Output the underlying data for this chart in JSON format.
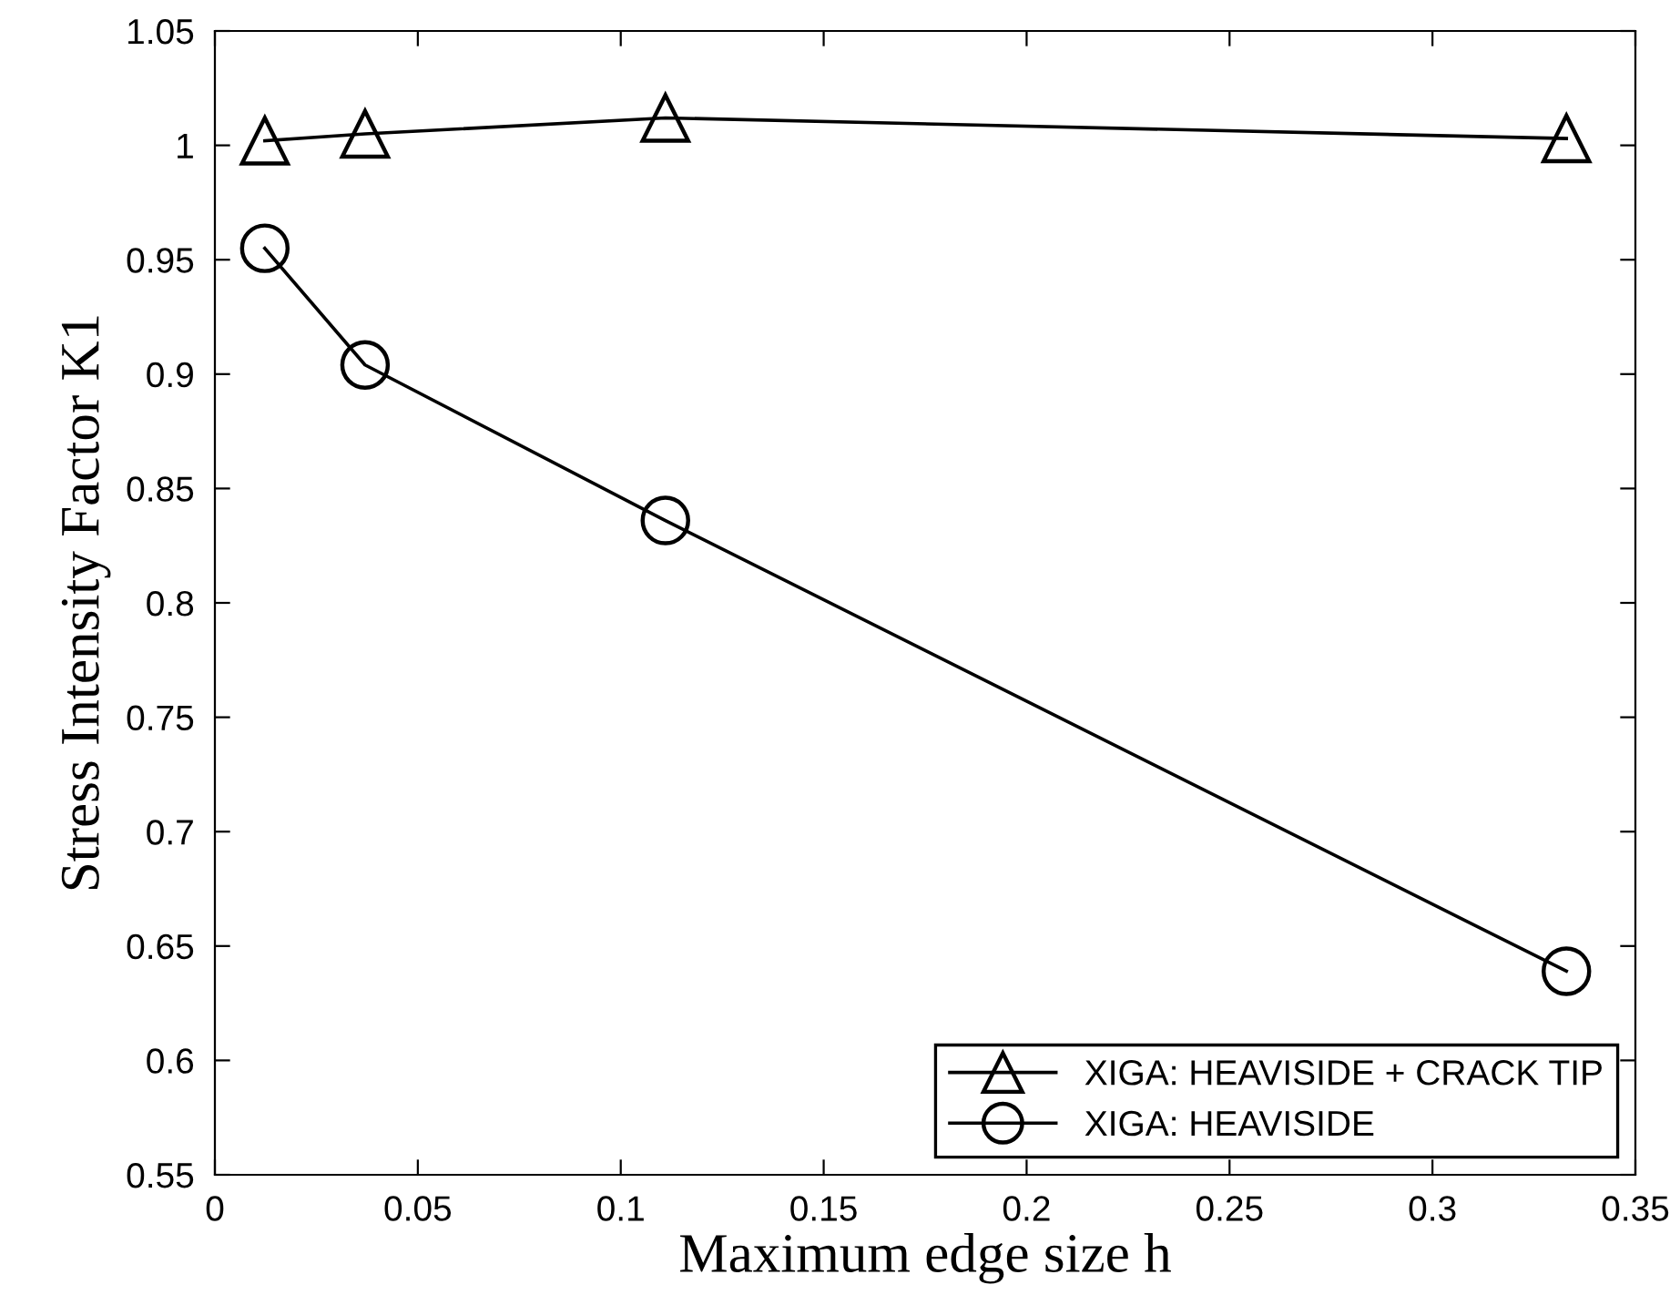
{
  "chart_data": {
    "type": "line",
    "xlabel": "Maximum edge size h",
    "ylabel": "Stress Intensity Factor K1",
    "x": [
      0.0123,
      0.037,
      0.111,
      0.333
    ],
    "series": [
      {
        "name": "XIGA: HEAVISIDE + CRACK TIP",
        "color": "#000000",
        "marker": "triangle",
        "values": [
          1.002,
          1.005,
          1.012,
          1.003
        ]
      },
      {
        "name": "XIGA: HEAVISIDE",
        "color": "#000000",
        "marker": "circle",
        "values": [
          0.955,
          0.904,
          0.836,
          0.639
        ]
      }
    ],
    "xlim": [
      0,
      0.35
    ],
    "xticks": [
      0,
      0.05,
      0.1,
      0.15,
      0.2,
      0.25,
      0.3,
      0.35
    ],
    "ylim": [
      0.55,
      1.05
    ],
    "yticks": [
      0.55,
      0.6,
      0.65,
      0.7,
      0.75,
      0.8,
      0.85,
      0.9,
      0.95,
      1,
      1.05
    ],
    "grid": false,
    "legend": "bottom right",
    "line_style": "solid"
  }
}
